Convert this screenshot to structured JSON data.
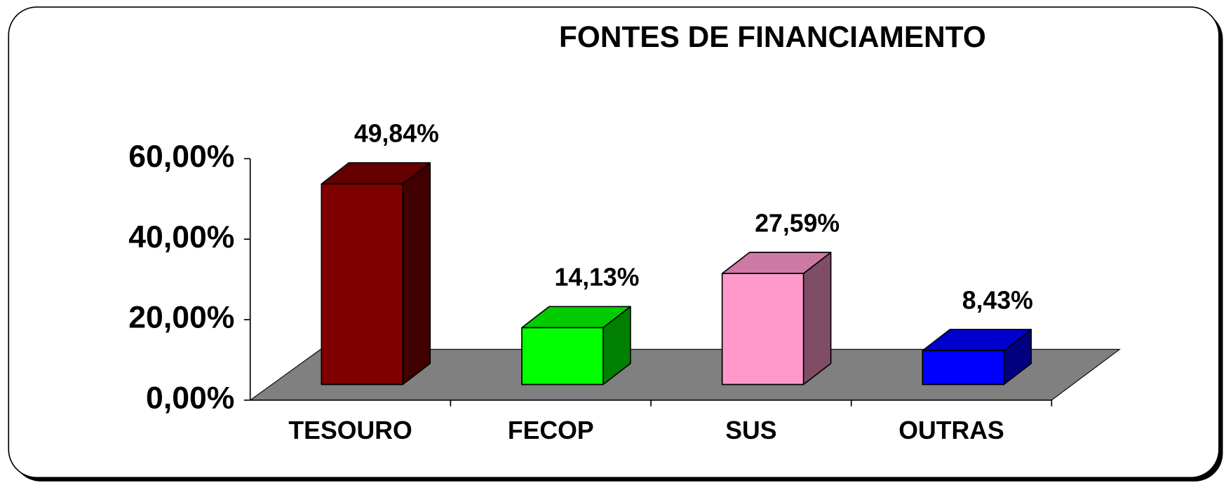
{
  "chart_data": {
    "type": "bar3d",
    "title": "FONTES DE FINANCIAMENTO",
    "categories": [
      "TESOURO",
      "FECOP",
      "SUS",
      "OUTRAS"
    ],
    "values": [
      49.84,
      14.13,
      27.59,
      8.43
    ],
    "value_labels": [
      "49,84%",
      "14,13%",
      "27,59%",
      "8,43%"
    ],
    "colors": [
      "#800000",
      "#00ff00",
      "#ff99cc",
      "#0000ff"
    ],
    "ylim": [
      0,
      60
    ],
    "yticks": [
      {
        "value": 0,
        "label": "0,00%"
      },
      {
        "value": 20,
        "label": "20,00%"
      },
      {
        "value": 40,
        "label": "40,00%"
      },
      {
        "value": 60,
        "label": "60,00%"
      }
    ]
  }
}
